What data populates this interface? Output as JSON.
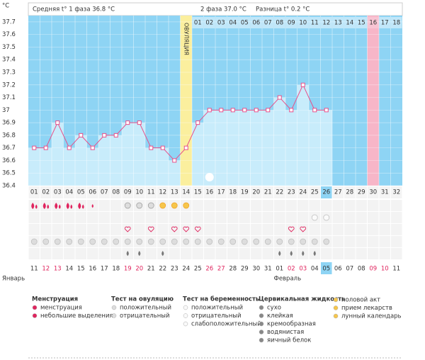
{
  "chart_data": {
    "type": "line",
    "y_label": "°C",
    "header_phase1": "Средняя t° 1 фаза 36.8 °C",
    "header_phase2": "2 фаза 37.0 °C",
    "header_diff": "Разница t° 0.2 °C",
    "ovulation_label": "ОВУЛЯЦИЯ",
    "categories": [
      "01",
      "02",
      "03",
      "04",
      "05",
      "06",
      "07",
      "08",
      "09",
      "10",
      "11",
      "12",
      "13",
      "14",
      "15",
      "16",
      "17",
      "18",
      "19",
      "20",
      "21",
      "22",
      "23",
      "24",
      "25",
      "26",
      "27",
      "28",
      "29",
      "30",
      "31",
      "32"
    ],
    "series": [
      {
        "name": "t°",
        "color": "#e8508a",
        "values": [
          36.7,
          36.7,
          36.9,
          36.7,
          36.8,
          36.7,
          36.8,
          36.8,
          36.9,
          36.9,
          36.7,
          36.7,
          36.6,
          36.7,
          36.9,
          37,
          37,
          37,
          37,
          37,
          37,
          37.1,
          37,
          37.2,
          37,
          37,
          null,
          null,
          null,
          null,
          null,
          null
        ]
      }
    ],
    "phase2_days": [
      "01",
      "02",
      "03",
      "04",
      "05",
      "06",
      "07",
      "08",
      "09",
      "10",
      "11",
      "12",
      "13",
      "14",
      "15",
      "16",
      "17",
      "18"
    ],
    "dates": [
      "11",
      "12",
      "13",
      "14",
      "15",
      "16",
      "17",
      "18",
      "19",
      "20",
      "21",
      "22",
      "23",
      "24",
      "25",
      "26",
      "27",
      "28",
      "29",
      "30",
      "31",
      "01",
      "02",
      "03",
      "04",
      "05",
      "06",
      "07",
      "08",
      "09",
      "10",
      "11"
    ],
    "date_colors": [
      "#333",
      "#e0245e",
      "#e0245e",
      "#333",
      "#333",
      "#333",
      "#333",
      "#333",
      "#e0245e",
      "#e0245e",
      "#333",
      "#333",
      "#333",
      "#333",
      "#333",
      "#e0245e",
      "#e0245e",
      "#333",
      "#333",
      "#333",
      "#333",
      "#333",
      "#e0245e",
      "#e0245e",
      "#333",
      "#333",
      "#333",
      "#333",
      "#333",
      "#e0245e",
      "#e0245e",
      "#333"
    ],
    "months": [
      "Январь",
      "Февраль"
    ],
    "ylim": [
      36.4,
      37.75
    ],
    "yticks": [
      36.4,
      36.5,
      36.6,
      36.7,
      36.8,
      36.9,
      37,
      37.1,
      37.2,
      37.3,
      37.4,
      37.5,
      37.6,
      37.7
    ],
    "grid": true,
    "legend": [
      {
        "title": "Менструация",
        "items": [
          "менструация",
          "небольшие выделения"
        ]
      },
      {
        "title": "Тест на овуляцию",
        "items": [
          "положительный",
          "отрицательный"
        ]
      },
      {
        "title": "Тест на беременность",
        "items": [
          "положительный",
          "отрицательный",
          "слабоположительный"
        ]
      },
      {
        "title": "Цервикальная жидкость",
        "items": [
          "сухо",
          "клейкая",
          "кремообразная",
          "водянистая",
          "яичный белок"
        ]
      },
      {
        "items": [
          "половой акт",
          "прием лекарств",
          "лунный календарь"
        ]
      }
    ]
  }
}
